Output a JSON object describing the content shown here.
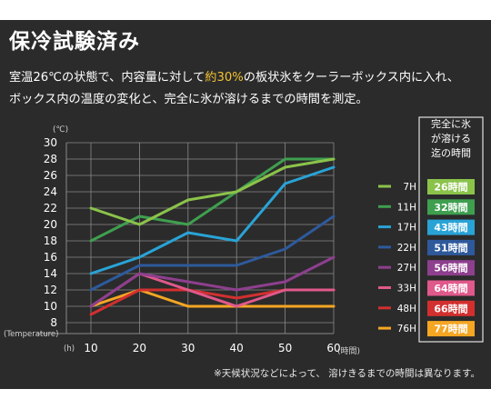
{
  "title": "保冷試験済み",
  "description": {
    "line1_pre": "室温26℃の状態で、内容量に対して",
    "line1_highlight": "約30%",
    "line1_post": "の板状氷をクーラーボックス内に入れ、",
    "line2": "ボックス内の温度の変化と、完全に氷が溶けるまでの時間を測定。"
  },
  "note": "※天候状況などによって、 溶けきるまでの時間は異なります。",
  "legend_box_title": [
    "完全に氷",
    "が溶ける",
    "迄の時間"
  ],
  "colors": {
    "background": "#2b2b2b",
    "accent": "#f4c430",
    "grid": "#8a8a8a"
  },
  "chart_data": {
    "type": "line",
    "y_unit": "(℃)",
    "ylabel": "(Temperature)",
    "x_unit": "(h)",
    "x_end_label": "(時間)",
    "x": [
      10,
      20,
      30,
      40,
      50,
      60
    ],
    "xlim": [
      10,
      60
    ],
    "ylim": [
      8,
      30
    ],
    "yticks": [
      8,
      10,
      12,
      14,
      16,
      18,
      20,
      22,
      24,
      26,
      28,
      30
    ],
    "xticks": [
      10,
      20,
      30,
      40,
      50,
      60
    ],
    "grid": true,
    "legend_position": "right",
    "series": [
      {
        "name": "7H",
        "melt_time": "26時間",
        "color": "#8bc34a",
        "values": [
          22,
          20,
          23,
          24,
          27,
          28
        ]
      },
      {
        "name": "11H",
        "melt_time": "32時間",
        "color": "#3f9f4f",
        "values": [
          18,
          21,
          20,
          24,
          28,
          28
        ]
      },
      {
        "name": "17H",
        "melt_time": "43時間",
        "color": "#29a3d6",
        "values": [
          14,
          16,
          19,
          18,
          25,
          27
        ]
      },
      {
        "name": "22H",
        "melt_time": "51時間",
        "color": "#2e5a9c",
        "values": [
          12,
          15,
          15,
          15,
          17,
          21
        ]
      },
      {
        "name": "27H",
        "melt_time": "56時間",
        "color": "#8e3f8e",
        "values": [
          10,
          14,
          13,
          12,
          13,
          16
        ]
      },
      {
        "name": "33H",
        "melt_time": "64時間",
        "color": "#e0598b",
        "values": [
          10,
          14,
          12,
          10,
          12,
          12
        ]
      },
      {
        "name": "48H",
        "melt_time": "66時間",
        "color": "#d32f2f",
        "values": [
          9,
          12,
          12,
          11,
          12,
          12
        ]
      },
      {
        "name": "76H",
        "melt_time": "77時間",
        "color": "#f5a623",
        "values": [
          10,
          12,
          10,
          10,
          10,
          10
        ]
      }
    ]
  }
}
